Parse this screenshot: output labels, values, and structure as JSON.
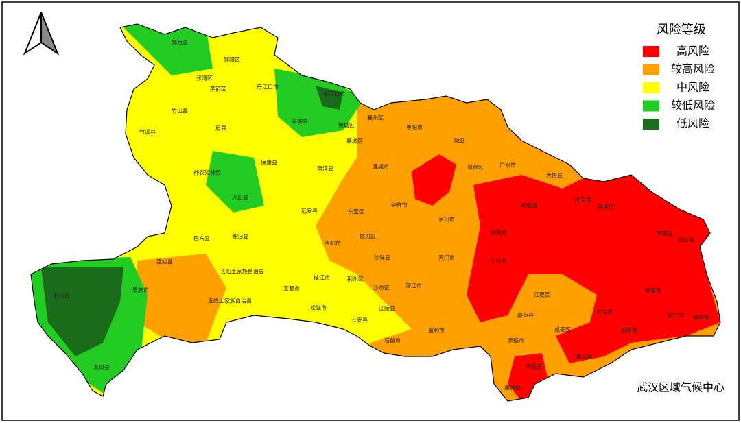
{
  "legend": {
    "title": "风险等级",
    "items": [
      {
        "label": "高风险",
        "color": "#ff0000"
      },
      {
        "label": "较高风险",
        "color": "#ff9f00"
      },
      {
        "label": "中风险",
        "color": "#ffff00"
      },
      {
        "label": "较低风险",
        "color": "#22cc22"
      },
      {
        "label": "低风险",
        "color": "#1a6b1a"
      }
    ]
  },
  "credit": "武汉区域气候中心",
  "places": [
    "郧西县",
    "郧阳区",
    "张湾区",
    "茅箭区",
    "丹江口市",
    "老河口市",
    "竹山县",
    "房县",
    "竹溪县",
    "谷城县",
    "樊城区",
    "襄州区",
    "襄城区",
    "枣阳市",
    "随县",
    "广水市",
    "大悟县",
    "保康县",
    "南漳县",
    "宜城市",
    "曾都区",
    "神农架林区",
    "兴山县",
    "红安县",
    "麻城市",
    "远安县",
    "东宝区",
    "钟祥市",
    "京山市",
    "孝昌县",
    "巴东县",
    "秭归县",
    "当阳市",
    "掇刀区",
    "安陆市",
    "罗田县",
    "英山县",
    "建始县",
    "沙洋县",
    "天门市",
    "汉川市",
    "长阳土家族自治县",
    "枝江市",
    "荆州区",
    "潜江市",
    "恩施市",
    "利川市",
    "五峰土家族自治县",
    "宜都市",
    "沙市区",
    "江夏区",
    "蕲春县",
    "松滋市",
    "江陵县",
    "大冶市",
    "武穴市",
    "黄梅县",
    "公安县",
    "监利市",
    "嘉鱼县",
    "咸安区",
    "石首市",
    "赤壁市",
    "阳新县",
    "通城县",
    "通山县",
    "崇阳县",
    "来凤县"
  ]
}
